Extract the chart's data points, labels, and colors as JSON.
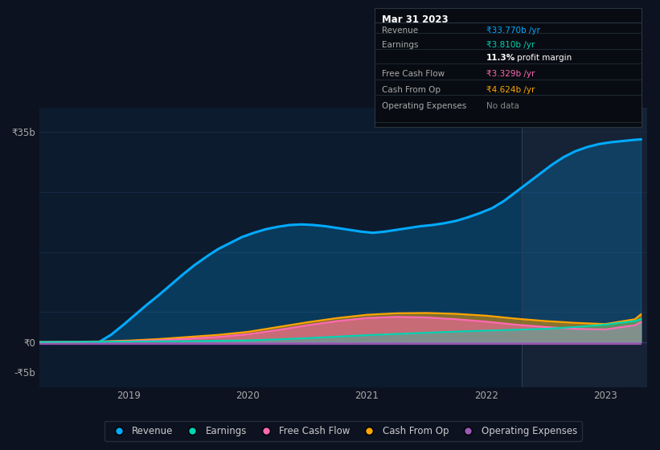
{
  "bg_color": "#0c1220",
  "plot_bg_color": "#0d1b2e",
  "highlight_bg": "#162235",
  "grid_color": "#1e3050",
  "tooltip_bg": "#080c12",
  "colors": {
    "revenue": "#00aaff",
    "earnings": "#00d4b4",
    "free_cash_flow": "#ff69b4",
    "cash_from_op": "#ffa500",
    "operating_expenses": "#9b59b6"
  },
  "ylabel_35b": "₹35b",
  "ylabel_0": "₹0",
  "ylabel_neg5b": "-₹5b",
  "x_ticks": [
    2019,
    2020,
    2021,
    2022,
    2023
  ],
  "x_range": [
    2018.25,
    2023.35
  ],
  "y_range": [
    -7.5,
    39
  ],
  "revenue_x": [
    2018.75,
    2018.85,
    2018.95,
    2019.05,
    2019.15,
    2019.25,
    2019.35,
    2019.45,
    2019.55,
    2019.65,
    2019.75,
    2019.85,
    2019.95,
    2020.05,
    2020.15,
    2020.25,
    2020.35,
    2020.45,
    2020.55,
    2020.65,
    2020.75,
    2020.85,
    2020.95,
    2021.05,
    2021.15,
    2021.25,
    2021.35,
    2021.45,
    2021.55,
    2021.65,
    2021.75,
    2021.85,
    2021.95,
    2022.05,
    2022.15,
    2022.25,
    2022.35,
    2022.45,
    2022.55,
    2022.65,
    2022.75,
    2022.85,
    2022.95,
    2023.05,
    2023.15,
    2023.25,
    2023.3
  ],
  "revenue_y": [
    0.0,
    1.2,
    2.8,
    4.5,
    6.2,
    7.8,
    9.5,
    11.2,
    12.8,
    14.2,
    15.5,
    16.5,
    17.5,
    18.2,
    18.8,
    19.2,
    19.5,
    19.6,
    19.5,
    19.3,
    19.0,
    18.7,
    18.4,
    18.2,
    18.4,
    18.7,
    19.0,
    19.3,
    19.5,
    19.8,
    20.2,
    20.8,
    21.5,
    22.3,
    23.5,
    25.0,
    26.5,
    28.0,
    29.5,
    30.8,
    31.8,
    32.5,
    33.0,
    33.3,
    33.5,
    33.7,
    33.77
  ],
  "earnings_x": [
    2018.25,
    2018.5,
    2018.75,
    2019.0,
    2019.25,
    2019.5,
    2019.75,
    2020.0,
    2020.25,
    2020.5,
    2020.75,
    2021.0,
    2021.25,
    2021.5,
    2021.75,
    2022.0,
    2022.25,
    2022.5,
    2022.75,
    2023.0,
    2023.25,
    2023.3
  ],
  "earnings_y": [
    0.0,
    0.03,
    0.05,
    0.08,
    0.12,
    0.15,
    0.2,
    0.28,
    0.45,
    0.65,
    0.9,
    1.15,
    1.35,
    1.55,
    1.75,
    1.9,
    2.05,
    2.2,
    2.5,
    2.9,
    3.5,
    3.81
  ],
  "fcf_x": [
    2018.25,
    2018.5,
    2018.75,
    2019.0,
    2019.25,
    2019.5,
    2019.75,
    2020.0,
    2020.25,
    2020.5,
    2020.75,
    2021.0,
    2021.25,
    2021.5,
    2021.75,
    2022.0,
    2022.25,
    2022.5,
    2022.75,
    2023.0,
    2023.25,
    2023.3
  ],
  "fcf_y": [
    0.0,
    0.03,
    0.06,
    0.15,
    0.3,
    0.55,
    0.85,
    1.3,
    2.0,
    2.8,
    3.5,
    4.0,
    4.2,
    4.1,
    3.8,
    3.4,
    2.9,
    2.5,
    2.2,
    2.1,
    2.8,
    3.329
  ],
  "cashop_x": [
    2018.25,
    2018.5,
    2018.75,
    2019.0,
    2019.25,
    2019.5,
    2019.75,
    2020.0,
    2020.25,
    2020.5,
    2020.75,
    2021.0,
    2021.25,
    2021.5,
    2021.75,
    2022.0,
    2022.25,
    2022.5,
    2022.75,
    2023.0,
    2023.25,
    2023.3
  ],
  "cashop_y": [
    0.0,
    0.05,
    0.1,
    0.25,
    0.5,
    0.85,
    1.2,
    1.7,
    2.5,
    3.3,
    4.0,
    4.55,
    4.8,
    4.85,
    4.7,
    4.4,
    3.9,
    3.5,
    3.2,
    3.0,
    3.8,
    4.624
  ],
  "opex_x": [
    2018.25,
    2018.5,
    2018.75,
    2019.0,
    2019.25,
    2019.5,
    2019.75,
    2020.0,
    2020.5,
    2021.0,
    2021.5,
    2022.0,
    2022.5,
    2023.0,
    2023.3
  ],
  "opex_y": [
    -0.3,
    -0.3,
    -0.3,
    -0.3,
    -0.3,
    -0.3,
    -0.3,
    -0.3,
    -0.3,
    -0.3,
    -0.3,
    -0.3,
    -0.3,
    -0.3,
    -0.3
  ],
  "highlight_x_start": 2022.3,
  "tooltip_title": "Mar 31 2023",
  "tooltip_rows": [
    {
      "label": "Revenue",
      "value": "₹33.770b /yr",
      "vcolor": "#00aaff"
    },
    {
      "label": "Earnings",
      "value": "₹3.810b /yr",
      "vcolor": "#00d4b4"
    },
    {
      "label": "",
      "value": "11.3% profit margin",
      "vcolor": "#ffffff"
    },
    {
      "label": "Free Cash Flow",
      "value": "₹3.329b /yr",
      "vcolor": "#ff69b4"
    },
    {
      "label": "Cash From Op",
      "value": "₹4.624b /yr",
      "vcolor": "#ffa500"
    },
    {
      "label": "Operating Expenses",
      "value": "No data",
      "vcolor": "#888888"
    }
  ]
}
